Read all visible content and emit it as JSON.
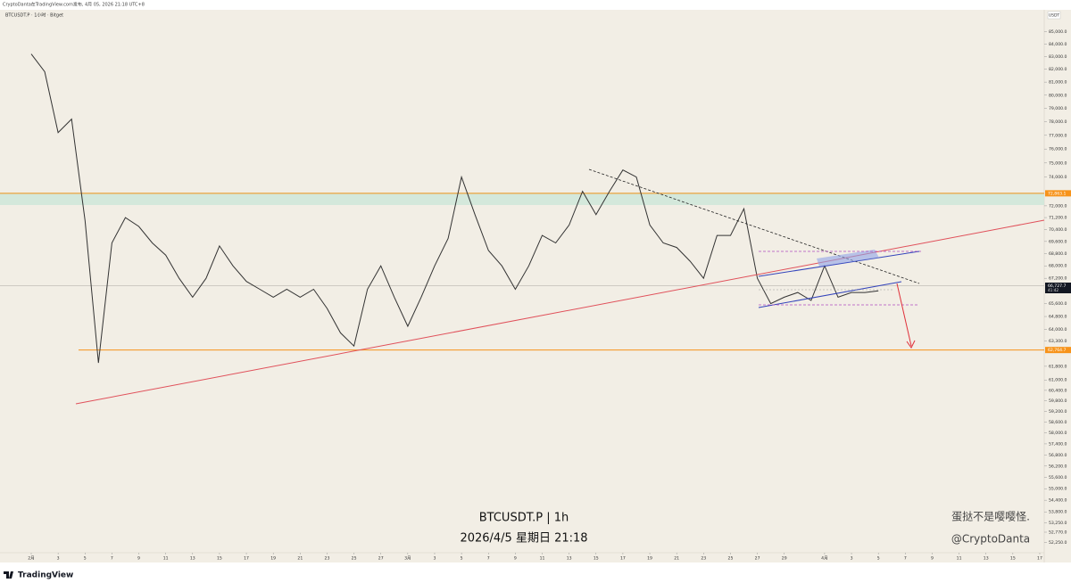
{
  "header": "CryptoDanta在TradingView.com发布, 4月 05, 2026 21:18 UTC+8",
  "symbol_legend": "BTCUSDT.P · 1小时 · Bitget",
  "currency": "USDT",
  "watermark": {
    "symbol": "BTCUSDT.P | 1h",
    "datetime": "2026/4/5 星期日 21:18",
    "author_name": "蛋挞不是嘤嘤怪.",
    "author_handle": "@CryptoDanta"
  },
  "footer": "TradingView",
  "chart_data": {
    "type": "line",
    "log_scale": true,
    "color": "#333333",
    "xlim": [
      "2026-01-29T16:15",
      "2026-04-17T08:00"
    ],
    "ylim": [
      51400,
      86700
    ],
    "x": [
      "2026-02-01",
      "2026-02-02",
      "2026-02-03",
      "2026-02-04",
      "2026-02-05",
      "2026-02-06",
      "2026-02-07",
      "2026-02-08",
      "2026-02-09",
      "2026-02-10",
      "2026-02-11",
      "2026-02-12",
      "2026-02-13",
      "2026-02-14",
      "2026-02-15",
      "2026-02-16",
      "2026-02-17",
      "2026-02-18",
      "2026-02-19",
      "2026-02-20",
      "2026-02-21",
      "2026-02-22",
      "2026-02-23",
      "2026-02-24",
      "2026-02-25",
      "2026-02-26",
      "2026-02-27",
      "2026-02-28",
      "2026-03-01",
      "2026-03-02",
      "2026-03-03",
      "2026-03-04",
      "2026-03-05",
      "2026-03-06",
      "2026-03-07",
      "2026-03-08",
      "2026-03-09",
      "2026-03-10",
      "2026-03-11",
      "2026-03-12",
      "2026-03-13",
      "2026-03-14",
      "2026-03-15",
      "2026-03-16",
      "2026-03-17",
      "2026-03-18",
      "2026-03-19",
      "2026-03-20",
      "2026-03-21",
      "2026-03-22",
      "2026-03-23",
      "2026-03-24",
      "2026-03-25",
      "2026-03-26",
      "2026-03-27",
      "2026-03-28",
      "2026-03-29",
      "2026-03-30",
      "2026-03-31",
      "2026-04-01",
      "2026-04-02",
      "2026-04-03",
      "2026-04-04",
      "2026-04-05"
    ],
    "values": [
      83200,
      81800,
      77200,
      78200,
      71000,
      62000,
      69500,
      71200,
      70600,
      69500,
      68700,
      67200,
      66000,
      67200,
      69300,
      68000,
      67000,
      66500,
      66000,
      66500,
      66000,
      66500,
      65300,
      63800,
      63000,
      66500,
      68000,
      66000,
      64200,
      66000,
      68000,
      69800,
      74000,
      71400,
      69000,
      68000,
      66500,
      68000,
      70000,
      69500,
      70700,
      73000,
      71400,
      73000,
      74500,
      74000,
      70700,
      69500,
      69200,
      68300,
      67200,
      70000,
      70000,
      71800,
      67200,
      65600,
      66000,
      66300,
      65800,
      68000,
      66000,
      66300,
      66300,
      66400
    ],
    "yticks": [
      {
        "value": 85000,
        "label": "85,000.0"
      },
      {
        "value": 84000,
        "label": "84,000.0"
      },
      {
        "value": 83000,
        "label": "83,000.0"
      },
      {
        "value": 82000,
        "label": "82,000.0"
      },
      {
        "value": 81000,
        "label": "81,000.0"
      },
      {
        "value": 80000,
        "label": "80,000.0"
      },
      {
        "value": 79000,
        "label": "79,000.0"
      },
      {
        "value": 78000,
        "label": "78,000.0"
      },
      {
        "value": 77000,
        "label": "77,000.0"
      },
      {
        "value": 76000,
        "label": "76,000.0"
      },
      {
        "value": 75000,
        "label": "75,000.0"
      },
      {
        "value": 74000,
        "label": "74,000.0"
      },
      {
        "value": 72000,
        "label": "72,000.0"
      },
      {
        "value": 71200,
        "label": "71,200.0"
      },
      {
        "value": 70400,
        "label": "70,400.0"
      },
      {
        "value": 69600,
        "label": "69,600.0"
      },
      {
        "value": 68800,
        "label": "68,800.0"
      },
      {
        "value": 68000,
        "label": "68,000.0"
      },
      {
        "value": 67200,
        "label": "67,200.0"
      },
      {
        "value": 65600,
        "label": "65,600.0"
      },
      {
        "value": 64800,
        "label": "64,800.0"
      },
      {
        "value": 64000,
        "label": "64,000.0"
      },
      {
        "value": 63300,
        "label": "63,300.0"
      },
      {
        "value": 61800,
        "label": "61,800.0"
      },
      {
        "value": 61000,
        "label": "61,000.0"
      },
      {
        "value": 60400,
        "label": "60,400.0"
      },
      {
        "value": 59800,
        "label": "59,800.0"
      },
      {
        "value": 59200,
        "label": "59,200.0"
      },
      {
        "value": 58600,
        "label": "58,600.0"
      },
      {
        "value": 58000,
        "label": "58,000.0"
      },
      {
        "value": 57400,
        "label": "57,400.0"
      },
      {
        "value": 56800,
        "label": "56,800.0"
      },
      {
        "value": 56200,
        "label": "56,200.0"
      },
      {
        "value": 55600,
        "label": "55,600.0"
      },
      {
        "value": 55000,
        "label": "55,000.0"
      },
      {
        "value": 54400,
        "label": "54,400.0"
      },
      {
        "value": 53800,
        "label": "53,800.0"
      },
      {
        "value": 53250,
        "label": "53,250.0"
      },
      {
        "value": 52770,
        "label": "52,770.0"
      },
      {
        "value": 52250,
        "label": "52,250.0"
      }
    ],
    "xticks": [
      {
        "value": "2026-02-01",
        "label": "2月"
      },
      {
        "value": "2026-02-03",
        "label": "3"
      },
      {
        "value": "2026-02-05",
        "label": "5"
      },
      {
        "value": "2026-02-07",
        "label": "7"
      },
      {
        "value": "2026-02-09",
        "label": "9"
      },
      {
        "value": "2026-02-11",
        "label": "11"
      },
      {
        "value": "2026-02-13",
        "label": "13"
      },
      {
        "value": "2026-02-15",
        "label": "15"
      },
      {
        "value": "2026-02-17",
        "label": "17"
      },
      {
        "value": "2026-02-19",
        "label": "19"
      },
      {
        "value": "2026-02-21",
        "label": "21"
      },
      {
        "value": "2026-02-23",
        "label": "23"
      },
      {
        "value": "2026-02-25",
        "label": "25"
      },
      {
        "value": "2026-02-27",
        "label": "27"
      },
      {
        "value": "2026-03-01",
        "label": "3月"
      },
      {
        "value": "2026-03-03",
        "label": "3"
      },
      {
        "value": "2026-03-05",
        "label": "5"
      },
      {
        "value": "2026-03-07",
        "label": "7"
      },
      {
        "value": "2026-03-09",
        "label": "9"
      },
      {
        "value": "2026-03-11",
        "label": "11"
      },
      {
        "value": "2026-03-13",
        "label": "13"
      },
      {
        "value": "2026-03-15",
        "label": "15"
      },
      {
        "value": "2026-03-17",
        "label": "17"
      },
      {
        "value": "2026-03-19",
        "label": "19"
      },
      {
        "value": "2026-03-21",
        "label": "21"
      },
      {
        "value": "2026-03-23",
        "label": "23"
      },
      {
        "value": "2026-03-25",
        "label": "25"
      },
      {
        "value": "2026-03-27",
        "label": "27"
      },
      {
        "value": "2026-03-29",
        "label": "29"
      },
      {
        "value": "2026-04-01",
        "label": "4月"
      },
      {
        "value": "2026-04-03",
        "label": "3"
      },
      {
        "value": "2026-04-05",
        "label": "5"
      },
      {
        "value": "2026-04-07",
        "label": "7"
      },
      {
        "value": "2026-04-09",
        "label": "9"
      },
      {
        "value": "2026-04-11",
        "label": "11"
      },
      {
        "value": "2026-04-13",
        "label": "13"
      },
      {
        "value": "2026-04-15",
        "label": "15"
      },
      {
        "value": "2026-04-17",
        "label": "17"
      }
    ],
    "price_levels": [
      {
        "value": 72863.1,
        "label": "72,863.1",
        "color": "#f7931a"
      },
      {
        "value": 62764.7,
        "label": "62,764.7",
        "color": "#f7931a"
      }
    ],
    "last_price": {
      "value": 66727.7,
      "label": "66,727.7",
      "countdown": "41:42",
      "color": "#131722"
    }
  }
}
